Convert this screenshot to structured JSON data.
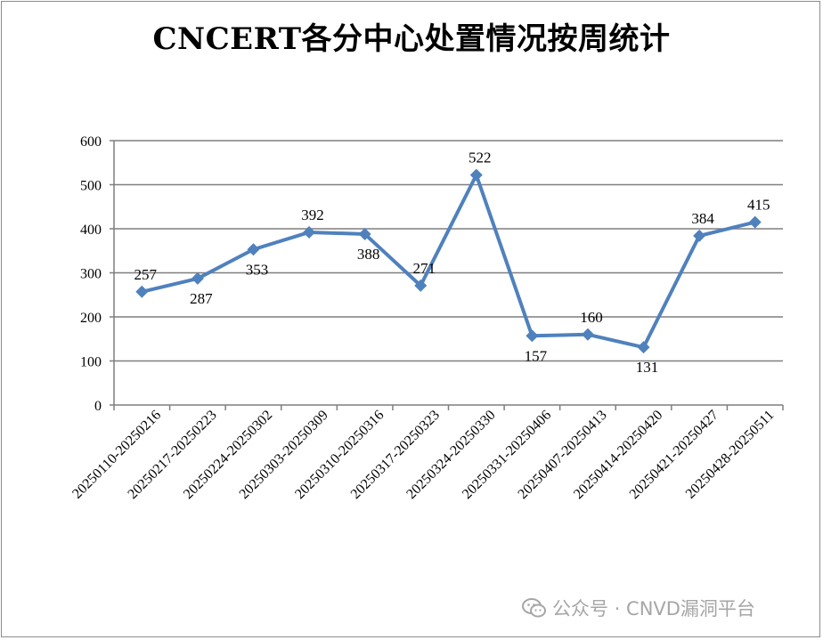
{
  "chart_data": {
    "type": "line",
    "title": "CNCERT各分中心处置情况按周统计",
    "categories": [
      "20250110-20250216",
      "20250217-20250223",
      "20250224-20250302",
      "20250303-20250309",
      "20250310-20250316",
      "20250317-20250323",
      "20250324-20250330",
      "20250331-20250406",
      "20250407-20250413",
      "20250414-20250420",
      "20250421-20250427",
      "20250428-20250511"
    ],
    "series": [
      {
        "values": [
          257,
          287,
          353,
          392,
          388,
          271,
          522,
          157,
          160,
          131,
          384,
          415
        ]
      }
    ],
    "label_positions": [
      "above",
      "below",
      "below",
      "above",
      "below",
      "above",
      "above",
      "below",
      "above",
      "below",
      "above",
      "above"
    ],
    "yticks": [
      0,
      100,
      200,
      300,
      400,
      500,
      600
    ],
    "ylim": [
      0,
      600
    ],
    "grid": true,
    "line_color": "#4f81bd",
    "marker": "diamond"
  },
  "watermark": {
    "text": "公众号 · CNVD漏洞平台",
    "icon": "wechat-icon"
  }
}
